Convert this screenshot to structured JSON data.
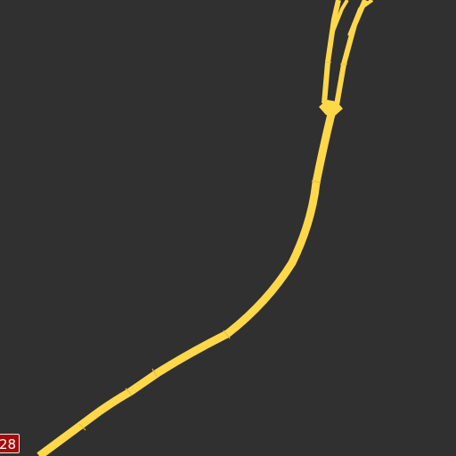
{
  "map": {
    "background_color": "#303030",
    "road_color": "#ffd84a",
    "road_casing_color": "#e6bf3a",
    "route_shield": {
      "label": "28",
      "color": "#a40c0c",
      "text_color": "#ffffff"
    }
  }
}
